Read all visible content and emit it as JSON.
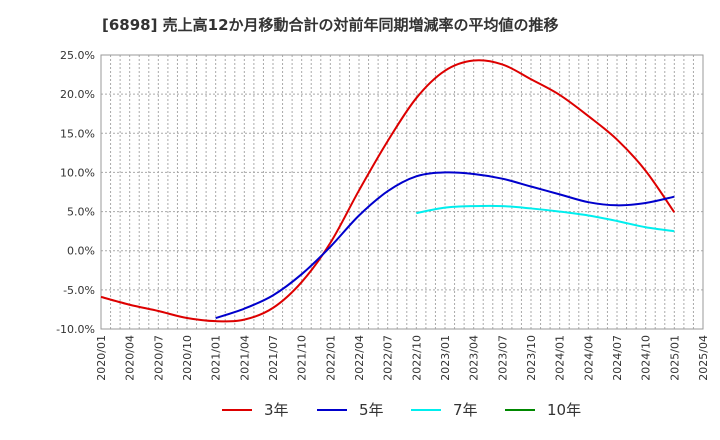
{
  "chart_data": {
    "type": "line",
    "title": "[6898]  売上高12か月移動合計の対前年同期増減率の平均値の推移",
    "xlabel": "",
    "ylabel": "",
    "ylim": [
      -10,
      25
    ],
    "x_tick_labels": [
      "2020/01",
      "2020/04",
      "2020/07",
      "2020/10",
      "2021/01",
      "2021/04",
      "2021/07",
      "2021/10",
      "2022/01",
      "2022/04",
      "2022/07",
      "2022/10",
      "2023/01",
      "2023/04",
      "2023/07",
      "2023/10",
      "2024/01",
      "2024/04",
      "2024/07",
      "2024/10",
      "2025/01",
      "2025/04"
    ],
    "y_tick_labels": [
      "-10.0%",
      "-5.0%",
      "0.0%",
      "5.0%",
      "10.0%",
      "15.0%",
      "20.0%",
      "25.0%"
    ],
    "y_tick_values": [
      -10,
      -5,
      0,
      5,
      10,
      15,
      20,
      25
    ],
    "grid": true,
    "legend_position": "bottom",
    "series": [
      {
        "name": "3年",
        "color": "#dd0000",
        "x": [
          "2020/01",
          "2020/04",
          "2020/07",
          "2020/10",
          "2021/01",
          "2021/04",
          "2021/07",
          "2021/10",
          "2022/01",
          "2022/04",
          "2022/07",
          "2022/10",
          "2023/01",
          "2023/04",
          "2023/07",
          "2023/10",
          "2024/01",
          "2024/04",
          "2024/07",
          "2024/10",
          "2025/01"
        ],
        "values": [
          -5.9,
          -6.9,
          -7.7,
          -8.6,
          -9.0,
          -8.8,
          -7.3,
          -4.0,
          1.0,
          7.7,
          14.0,
          19.5,
          23.0,
          24.3,
          23.8,
          21.9,
          19.9,
          17.2,
          14.2,
          10.2,
          4.9
        ]
      },
      {
        "name": "5年",
        "color": "#0000cc",
        "x": [
          "2021/01",
          "2021/04",
          "2021/07",
          "2021/10",
          "2022/01",
          "2022/04",
          "2022/07",
          "2022/10",
          "2023/01",
          "2023/04",
          "2023/07",
          "2023/10",
          "2024/01",
          "2024/04",
          "2024/07",
          "2024/10",
          "2025/01"
        ],
        "values": [
          -8.6,
          -7.4,
          -5.7,
          -3.0,
          0.5,
          4.5,
          7.6,
          9.5,
          10.0,
          9.8,
          9.2,
          8.2,
          7.2,
          6.2,
          5.8,
          6.1,
          6.9
        ]
      },
      {
        "name": "7年",
        "color": "#00eeee",
        "x": [
          "2022/10",
          "2023/01",
          "2023/04",
          "2023/07",
          "2023/10",
          "2024/01",
          "2024/04",
          "2024/07",
          "2024/10",
          "2025/01"
        ],
        "values": [
          4.8,
          5.5,
          5.7,
          5.7,
          5.4,
          5.0,
          4.5,
          3.8,
          3.0,
          2.5
        ]
      },
      {
        "name": "10年",
        "color": "#008800",
        "x": [],
        "values": []
      }
    ]
  }
}
